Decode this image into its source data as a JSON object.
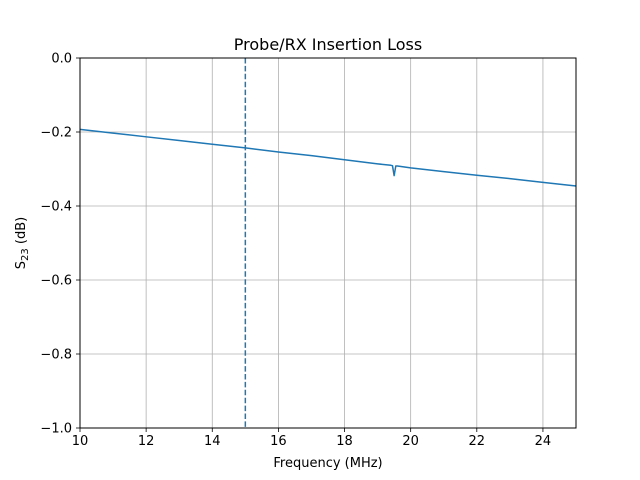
{
  "chart_data": {
    "type": "line",
    "title": "Probe/RX Insertion Loss",
    "xlabel": "Frequency (MHz)",
    "ylabel": {
      "base": "S",
      "sub": "23",
      "suffix": " (dB)"
    },
    "xlim": [
      10,
      25
    ],
    "ylim": [
      -1.0,
      0.0
    ],
    "xticks": [
      10,
      12,
      14,
      16,
      18,
      20,
      22,
      24
    ],
    "xtick_labels": [
      "10",
      "12",
      "14",
      "16",
      "18",
      "20",
      "22",
      "24"
    ],
    "yticks": [
      0.0,
      -0.2,
      -0.4,
      -0.6,
      -0.8,
      -1.0
    ],
    "ytick_labels": [
      "0.0",
      "−0.2",
      "−0.4",
      "−0.6",
      "−0.8",
      "−1.0"
    ],
    "grid": true,
    "series": [
      {
        "color": "#1f77b4",
        "style": "solid",
        "x": [
          10,
          11,
          12,
          13,
          14,
          15,
          16,
          17,
          18,
          19,
          19.4,
          19.45,
          19.5,
          19.55,
          19.6,
          20,
          21,
          22,
          23,
          24,
          25
        ],
        "y": [
          -0.193,
          -0.203,
          -0.213,
          -0.223,
          -0.233,
          -0.243,
          -0.254,
          -0.264,
          -0.275,
          -0.286,
          -0.29,
          -0.291,
          -0.318,
          -0.292,
          -0.292,
          -0.297,
          -0.307,
          -0.317,
          -0.326,
          -0.336,
          -0.346
        ]
      }
    ],
    "vlines": [
      {
        "x": 15,
        "color": "#1f77b4",
        "style": "dashed"
      }
    ]
  }
}
